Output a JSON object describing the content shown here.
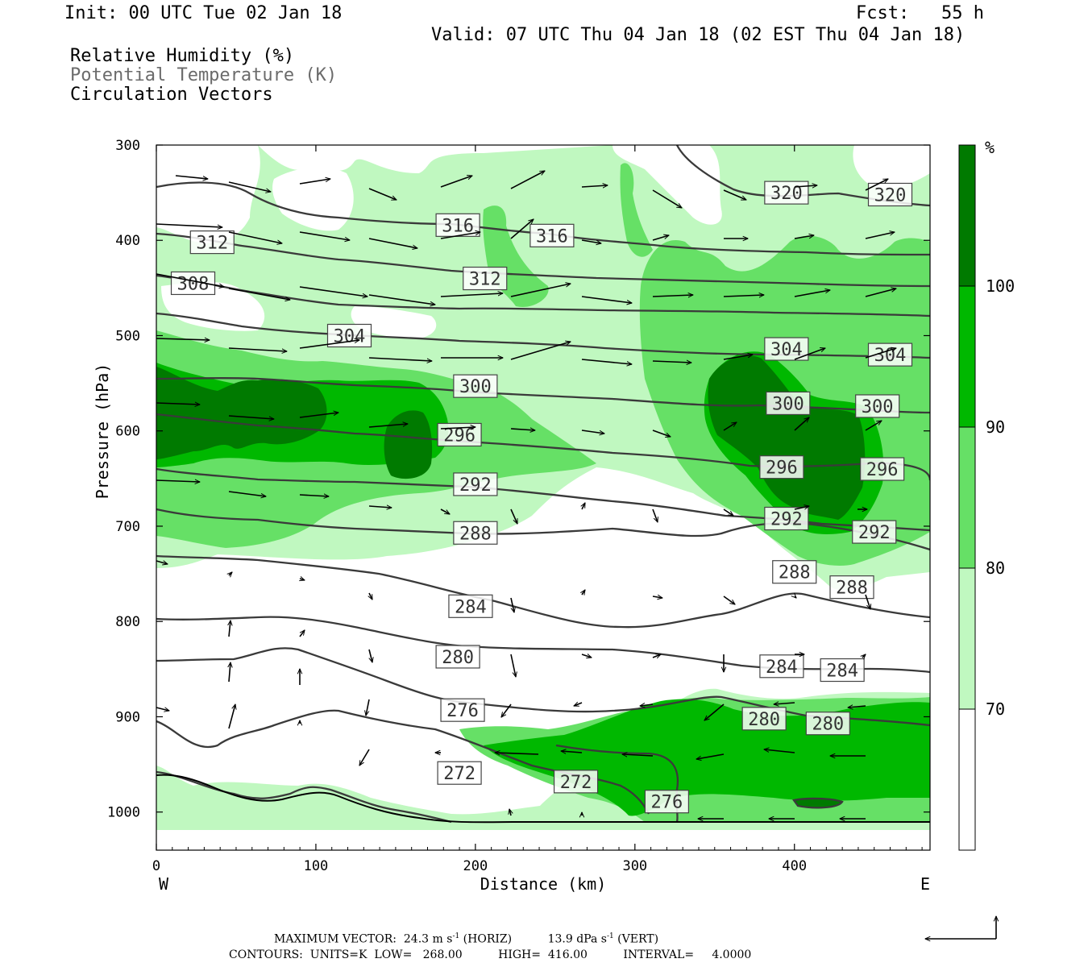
{
  "header": {
    "init": "Init: 00 UTC Tue 02 Jan 18",
    "fcst": "Fcst:   55 h",
    "valid": "Valid: 07 UTC Thu 04 Jan 18 (02 EST Thu 04 Jan 18)",
    "field1": "Relative Humidity (%)",
    "field2": "Potential Temperature (K)",
    "field3": "Circulation Vectors"
  },
  "footer": {
    "max_vector_label": "MAXIMUM VECTOR:",
    "horiz_value": "24.3 m s",
    "horiz_exp": "-1",
    "horiz_unit": " (HORIZ)",
    "vert_value": "13.9 dPa s",
    "vert_exp": "-1",
    "vert_unit": " (VERT)",
    "contours_line": "CONTOURS:  UNITS=K  LOW=   268.00          HIGH=  416.00          INTERVAL=     4.0000"
  },
  "colors": {
    "rh_70": "#c0f8c0",
    "rh_80": "#66e066",
    "rh_90": "#00b800",
    "rh_100": "#007a00",
    "contour": "#3a3a3a"
  },
  "chart_data": {
    "type": "cross-section",
    "xlabel": "Distance (km)",
    "ylabel": "Pressure (hPa)",
    "xlim": [
      0,
      485
    ],
    "ylim": [
      1040,
      300
    ],
    "x_ticks": [
      0,
      100,
      200,
      300,
      400
    ],
    "y_ticks": [
      300,
      400,
      500,
      600,
      700,
      800,
      900,
      1000
    ],
    "x_end_labels": {
      "left": "W",
      "right": "E"
    },
    "colorbar": {
      "unit": "%",
      "ticks": [
        "70",
        "80",
        "90",
        "100"
      ],
      "levels": [
        60,
        70,
        80,
        90,
        100,
        110
      ]
    },
    "contour_labels": [
      {
        "text": "320",
        "x": 395,
        "p": 350
      },
      {
        "text": "320",
        "x": 460,
        "p": 352
      },
      {
        "text": "316",
        "x": 189,
        "p": 384
      },
      {
        "text": "316",
        "x": 248,
        "p": 395
      },
      {
        "text": "312",
        "x": 35,
        "p": 402
      },
      {
        "text": "312",
        "x": 206,
        "p": 440
      },
      {
        "text": "308",
        "x": 23,
        "p": 445
      },
      {
        "text": "304",
        "x": 121,
        "p": 500
      },
      {
        "text": "304",
        "x": 395,
        "p": 514
      },
      {
        "text": "304",
        "x": 460,
        "p": 520
      },
      {
        "text": "300",
        "x": 200,
        "p": 553
      },
      {
        "text": "300",
        "x": 396,
        "p": 571
      },
      {
        "text": "300",
        "x": 452,
        "p": 574
      },
      {
        "text": "296",
        "x": 190,
        "p": 604
      },
      {
        "text": "296",
        "x": 392,
        "p": 638
      },
      {
        "text": "296",
        "x": 455,
        "p": 640
      },
      {
        "text": "292",
        "x": 200,
        "p": 656
      },
      {
        "text": "292",
        "x": 395,
        "p": 692
      },
      {
        "text": "292",
        "x": 450,
        "p": 706
      },
      {
        "text": "288",
        "x": 200,
        "p": 707
      },
      {
        "text": "288",
        "x": 400,
        "p": 748
      },
      {
        "text": "288",
        "x": 436,
        "p": 764
      },
      {
        "text": "284",
        "x": 197,
        "p": 784
      },
      {
        "text": "284",
        "x": 392,
        "p": 847
      },
      {
        "text": "284",
        "x": 430,
        "p": 851
      },
      {
        "text": "280",
        "x": 189,
        "p": 837
      },
      {
        "text": "280",
        "x": 381,
        "p": 902
      },
      {
        "text": "280",
        "x": 421,
        "p": 907
      },
      {
        "text": "276",
        "x": 192,
        "p": 893
      },
      {
        "text": "276",
        "x": 320,
        "p": 989
      },
      {
        "text": "272",
        "x": 190,
        "p": 959
      },
      {
        "text": "272",
        "x": 263,
        "p": 968
      }
    ]
  }
}
